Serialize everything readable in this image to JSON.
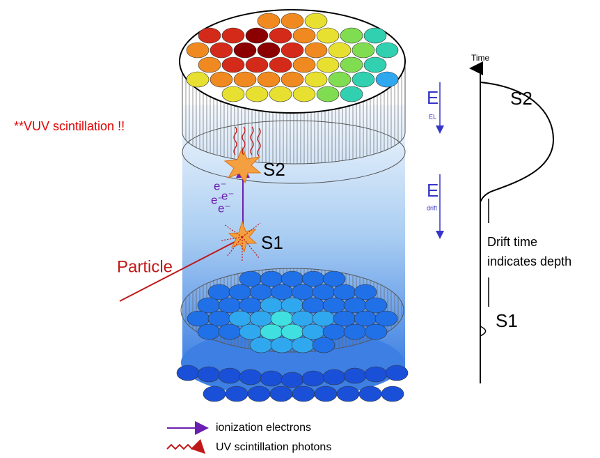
{
  "annotation": "**VUV scintillation !!",
  "detector": {
    "s2_label": "S2",
    "s1_label": "S1",
    "electrons": [
      "e⁻",
      "e⁻",
      "e⁻",
      "e⁻"
    ],
    "particle_label": "Particle"
  },
  "fields": [
    {
      "symbol": "E",
      "subscript": "EL"
    },
    {
      "symbol": "E",
      "subscript": "drift"
    }
  ],
  "signal_plot": {
    "axis_label": "Time",
    "s2_label": "S2",
    "note_lines": [
      "Drift time",
      "indicates depth"
    ],
    "s1_label": "S1"
  },
  "legend": [
    {
      "label": "ionization electrons"
    },
    {
      "label": "UV scintillation photons"
    }
  ]
}
